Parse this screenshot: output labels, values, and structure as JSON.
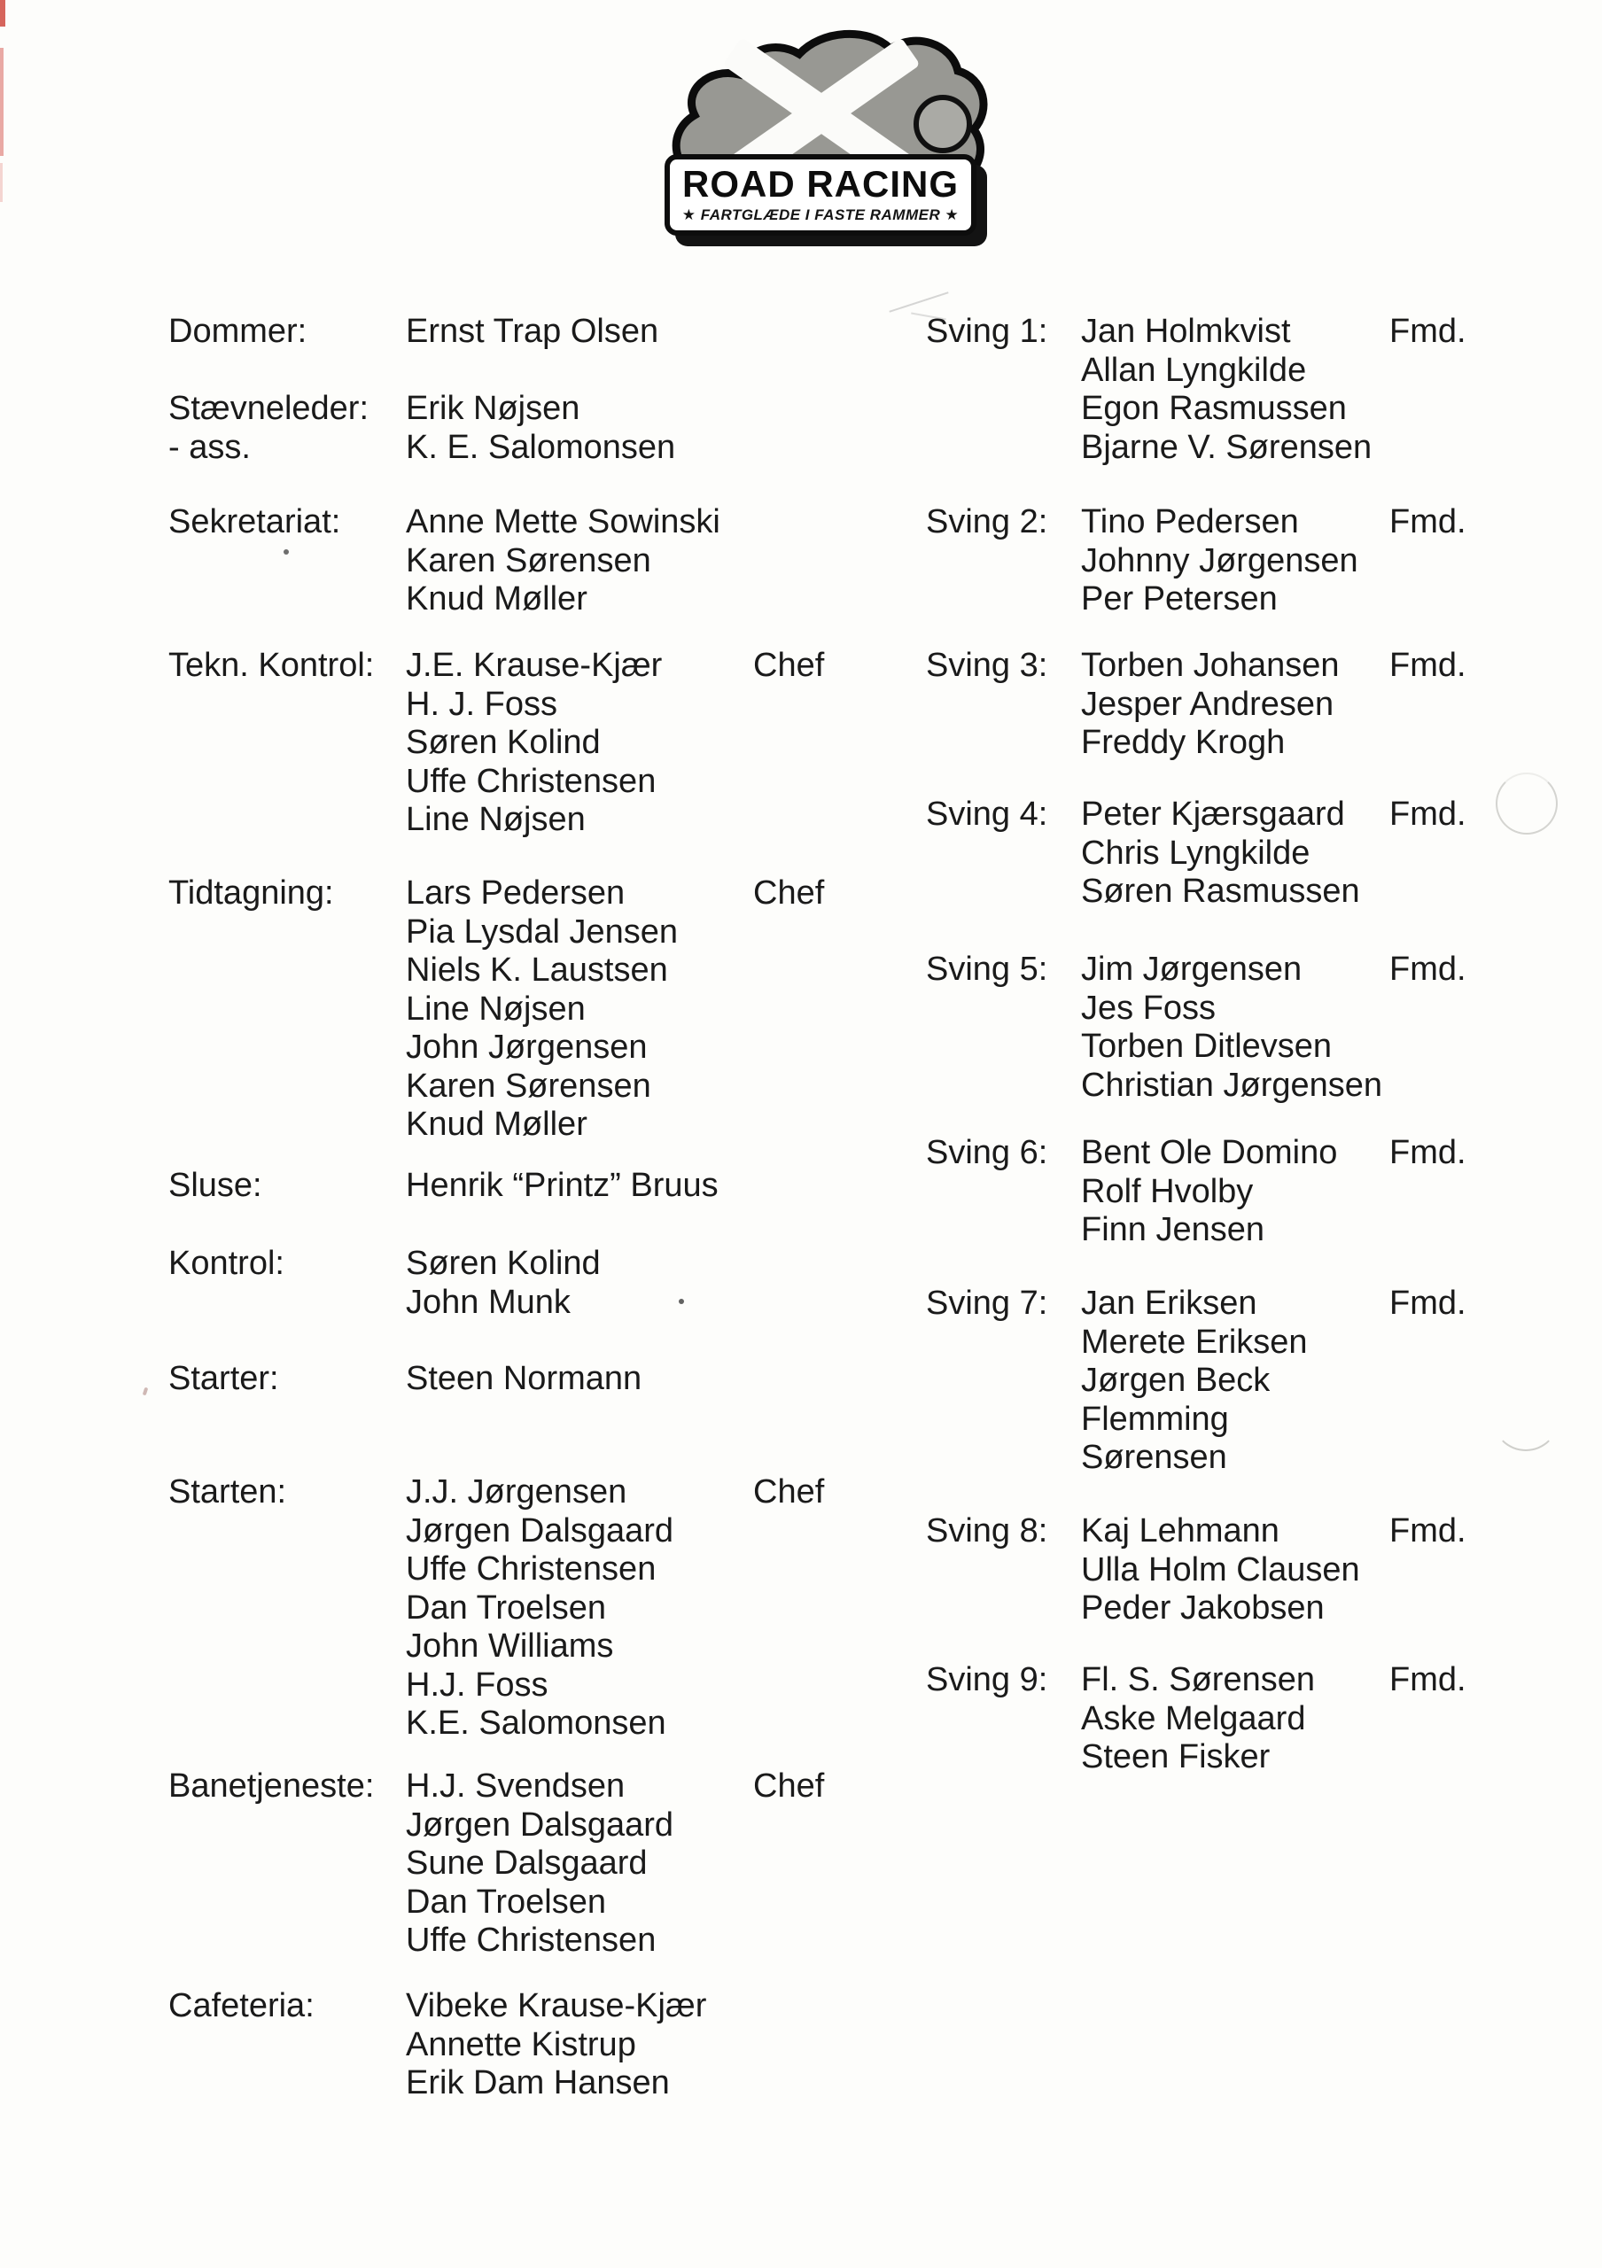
{
  "logo": {
    "title": "ROAD RACING",
    "subtitle": "★ FARTGLÆDE I FASTE RAMMER ★"
  },
  "officials": [
    {
      "labels": [
        "Dommer:"
      ],
      "names": [
        "Ernst Trap Olsen"
      ],
      "tag": ""
    },
    {
      "labels": [
        "Stævneleder:",
        "- ass."
      ],
      "names": [
        "Erik Nøjsen",
        "K. E. Salomonsen"
      ],
      "tag": ""
    },
    {
      "labels": [
        "Sekretariat:"
      ],
      "names": [
        "Anne Mette Sowinski",
        "Karen Sørensen",
        "Knud Møller"
      ],
      "tag": ""
    },
    {
      "labels": [
        "Tekn. Kontrol:"
      ],
      "names": [
        "J.E. Krause-Kjær",
        "H. J. Foss",
        "Søren Kolind",
        "Uffe Christensen",
        "Line Nøjsen"
      ],
      "tag": "Chef"
    },
    {
      "labels": [
        "Tidtagning:"
      ],
      "names": [
        "Lars Pedersen",
        "Pia Lysdal Jensen",
        "Niels K. Laustsen",
        "Line Nøjsen",
        "John Jørgensen",
        "Karen Sørensen",
        "Knud Møller"
      ],
      "tag": "Chef"
    },
    {
      "labels": [
        "Sluse:"
      ],
      "names": [
        "Henrik “Printz” Bruus"
      ],
      "tag": ""
    },
    {
      "labels": [
        "Kontrol:"
      ],
      "names": [
        "Søren Kolind",
        "John Munk"
      ],
      "tag": ""
    },
    {
      "labels": [
        "Starter:"
      ],
      "names": [
        "Steen Normann"
      ],
      "tag": ""
    },
    {
      "labels": [
        "Starten:"
      ],
      "names": [
        "J.J. Jørgensen",
        "Jørgen Dalsgaard",
        "Uffe Christensen",
        "Dan Troelsen",
        "John Williams",
        "H.J. Foss",
        "K.E. Salomonsen"
      ],
      "tag": "Chef"
    },
    {
      "labels": [
        "Banetjeneste:"
      ],
      "names": [
        "H.J. Svendsen",
        "Jørgen Dalsgaard",
        "Sune Dalsgaard",
        "Dan Troelsen",
        "Uffe Christensen"
      ],
      "tag": "Chef"
    },
    {
      "labels": [
        "Cafeteria:"
      ],
      "names": [
        "Vibeke Krause-Kjær",
        "Annette Kistrup",
        "Erik Dam Hansen"
      ],
      "tag": ""
    }
  ],
  "corners": [
    {
      "labels": [
        "Sving 1:"
      ],
      "names": [
        "Jan Holmkvist",
        "Allan Lyngkilde",
        "Egon Rasmussen",
        "Bjarne V. Sørensen"
      ],
      "tag": "Fmd."
    },
    {
      "labels": [
        "Sving 2:"
      ],
      "names": [
        "Tino Pedersen",
        "Johnny Jørgensen",
        "Per Petersen"
      ],
      "tag": "Fmd."
    },
    {
      "labels": [
        "Sving 3:"
      ],
      "names": [
        "Torben Johansen",
        "Jesper Andresen",
        "Freddy Krogh"
      ],
      "tag": "Fmd."
    },
    {
      "labels": [
        "Sving 4:"
      ],
      "names": [
        "Peter Kjærsgaard",
        "Chris Lyngkilde",
        "Søren Rasmussen"
      ],
      "tag": "Fmd."
    },
    {
      "labels": [
        "Sving 5:"
      ],
      "names": [
        "Jim Jørgensen",
        "Jes Foss",
        "Torben Ditlevsen",
        "Christian Jørgensen"
      ],
      "tag": "Fmd."
    },
    {
      "labels": [
        "Sving 6:"
      ],
      "names": [
        "Bent Ole Domino",
        "Rolf Hvolby",
        "Finn Jensen"
      ],
      "tag": "Fmd."
    },
    {
      "labels": [
        "Sving 7:"
      ],
      "names": [
        "Jan Eriksen",
        "Merete Eriksen",
        "Jørgen Beck",
        "Flemming",
        "Sørensen"
      ],
      "tag": "Fmd."
    },
    {
      "labels": [
        "Sving 8:"
      ],
      "names": [
        "Kaj Lehmann",
        "Ulla Holm Clausen",
        "Peder Jakobsen"
      ],
      "tag": "Fmd."
    },
    {
      "labels": [
        "Sving 9:"
      ],
      "names": [
        "Fl. S. Sørensen",
        "Aske Melgaard",
        "Steen Fisker"
      ],
      "tag": "Fmd."
    }
  ]
}
